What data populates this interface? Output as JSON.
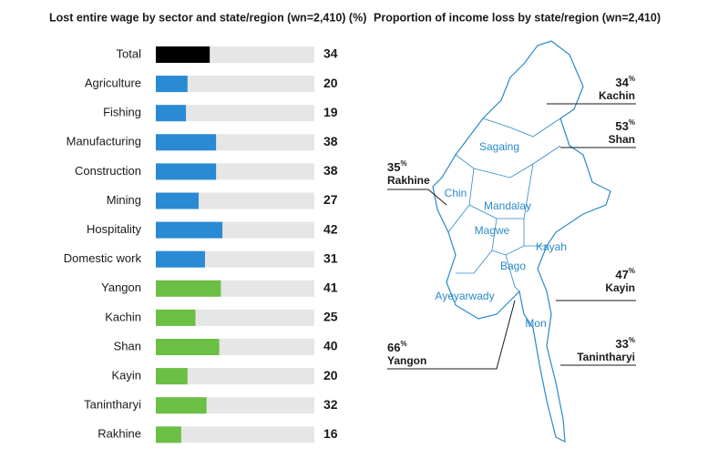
{
  "chart_data": [
    {
      "type": "bar",
      "title": "Lost entire wage by sector and state/region (wn=2,410) (%)",
      "categories": [
        "Total",
        "Agriculture",
        "Fishing",
        "Manufacturing",
        "Construction",
        "Mining",
        "Hospitality",
        "Domestic work",
        "Yangon",
        "Kachin",
        "Shan",
        "Kayin",
        "Tanintharyi",
        "Rakhine"
      ],
      "values": [
        34,
        20,
        19,
        38,
        38,
        27,
        42,
        31,
        41,
        25,
        40,
        20,
        32,
        16
      ],
      "colors": [
        "#000000",
        "#2a8ad4",
        "#2a8ad4",
        "#2a8ad4",
        "#2a8ad4",
        "#2a8ad4",
        "#2a8ad4",
        "#2a8ad4",
        "#6cbf45",
        "#6cbf45",
        "#6cbf45",
        "#6cbf45",
        "#6cbf45",
        "#6cbf45"
      ],
      "track_color": "#e6e6e6",
      "xlim": [
        0,
        100
      ]
    },
    {
      "type": "map",
      "title": "Proportion of income loss by state/region (wn=2,410)",
      "color": "#2a8ac8",
      "region_labels": [
        "Sagaing",
        "Chin",
        "Mandalay",
        "Magwe",
        "Kayah",
        "Bago",
        "Ayeyarwady",
        "Mon"
      ],
      "callouts": {
        "regions": [
          "Kachin",
          "Shan",
          "Rakhine",
          "Kayin",
          "Yangon",
          "Tanintharyi"
        ],
        "values": [
          34,
          53,
          35,
          47,
          66,
          33
        ],
        "unit": "%"
      }
    }
  ]
}
